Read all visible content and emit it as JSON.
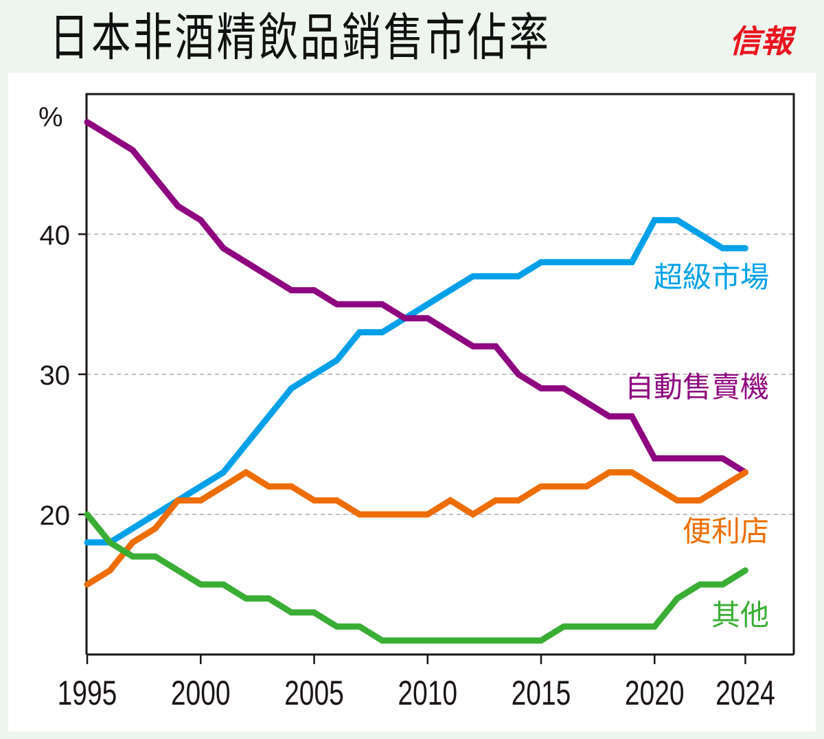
{
  "header": {
    "title": "日本非酒精飲品銷售市佔率",
    "logo": "信報"
  },
  "colors": {
    "background": "#eef5ee",
    "panel": "#ffffff",
    "axis": "#1a1414",
    "grid": "#999999",
    "logo": "#e8141f"
  },
  "chart_data": {
    "type": "line",
    "title": "日本非酒精飲品銷售市佔率",
    "xlabel": "",
    "ylabel": "%",
    "x": [
      1995,
      1996,
      1997,
      1998,
      1999,
      2000,
      2001,
      2002,
      2003,
      2004,
      2005,
      2006,
      2007,
      2008,
      2009,
      2010,
      2011,
      2012,
      2013,
      2014,
      2015,
      2016,
      2017,
      2018,
      2019,
      2020,
      2021,
      2022,
      2023,
      2024
    ],
    "xlim": [
      1995,
      2025
    ],
    "ylim": [
      9.9,
      49.9
    ],
    "xticks": [
      1995,
      2000,
      2005,
      2010,
      2015,
      2020,
      2024
    ],
    "xtick_labels": [
      "1995",
      "2000",
      "2005",
      "2010",
      "2015",
      "2020",
      "2024"
    ],
    "yticks": [
      20,
      30,
      40
    ],
    "ytick_labels": [
      "20",
      "30",
      "40"
    ],
    "grid": "horizontal-dashed",
    "legend": "inline-right",
    "series": [
      {
        "name": "超級市場",
        "color": "#00a0e9",
        "values": [
          18,
          18,
          19,
          20,
          21,
          22,
          23,
          25,
          27,
          29,
          30,
          31,
          33,
          33,
          34,
          35,
          36,
          37,
          37,
          37,
          38,
          38,
          38,
          38,
          38,
          41,
          41,
          40,
          39,
          39
        ]
      },
      {
        "name": "自動售賣機",
        "color": "#8e067f",
        "values": [
          48,
          47,
          46,
          44,
          42,
          41,
          39,
          38,
          37,
          36,
          36,
          35,
          35,
          35,
          34,
          34,
          33,
          32,
          32,
          30,
          29,
          29,
          28,
          27,
          27,
          24,
          24,
          24,
          24,
          23
        ]
      },
      {
        "name": "便利店",
        "color": "#ee6d00",
        "values": [
          15,
          16,
          18,
          19,
          21,
          21,
          22,
          23,
          22,
          22,
          21,
          21,
          20,
          20,
          20,
          20,
          21,
          20,
          21,
          21,
          22,
          22,
          22,
          23,
          23,
          22,
          21,
          21,
          22,
          23
        ]
      },
      {
        "name": "其他",
        "color": "#3aae34",
        "values": [
          20,
          18,
          17,
          17,
          16,
          15,
          15,
          14,
          14,
          13,
          13,
          12,
          12,
          11,
          11,
          11,
          11,
          11,
          11,
          11,
          11,
          12,
          12,
          12,
          12,
          12,
          14,
          15,
          15,
          16
        ]
      }
    ]
  }
}
